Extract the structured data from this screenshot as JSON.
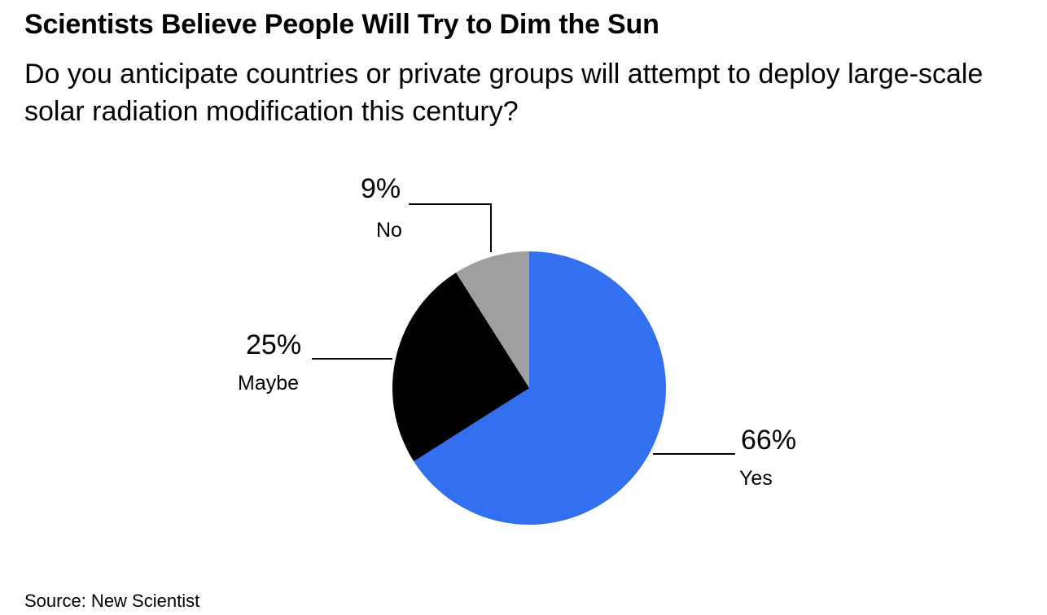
{
  "header": {
    "title": "Scientists Believe People Will Try to Dim the Sun",
    "subtitle": "Do you anticipate countries or private groups will attempt to deploy large-scale solar radiation modification this century?"
  },
  "chart_data": {
    "type": "pie",
    "title": "Scientists Believe People Will Try to Dim the Sun",
    "subtitle": "Do you anticipate countries or private groups will attempt to deploy large-scale solar radiation modification this century?",
    "start_angle_deg": 0,
    "direction": "clockwise",
    "legend_position": "outside-labels-with-leader-lines",
    "slices": [
      {
        "label": "Yes",
        "value": 66,
        "pct_label": "66%",
        "color": "#3370F0"
      },
      {
        "label": "Maybe",
        "value": 25,
        "pct_label": "25%",
        "color": "#000000"
      },
      {
        "label": "No",
        "value": 9,
        "pct_label": "9%",
        "color": "#9F9F9F"
      }
    ]
  },
  "source": {
    "text": "Source: New Scientist"
  }
}
